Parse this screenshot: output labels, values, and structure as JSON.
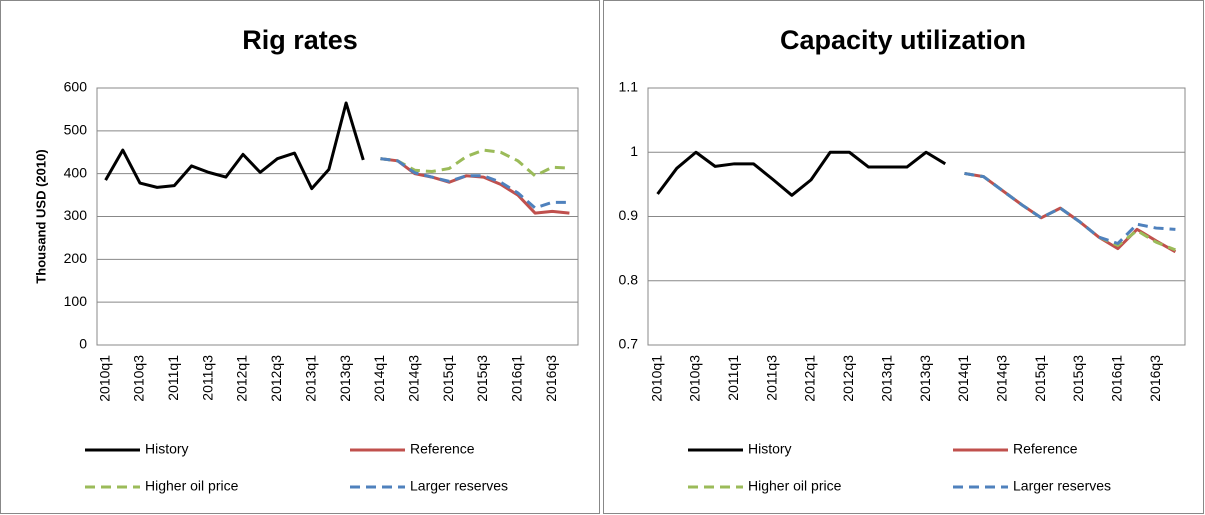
{
  "chart_data": [
    {
      "type": "line",
      "title": "Rig rates",
      "y_label": "Thousand  USD (2010)",
      "categories": [
        "2010q1",
        null,
        "2010q3",
        null,
        "2011q1",
        null,
        "2011q3",
        null,
        "2012q1",
        null,
        "2012q3",
        null,
        "2013q1",
        null,
        "2013q3",
        null,
        "2014q1",
        null,
        "2014q3",
        null,
        "2015q1",
        null,
        "2015q3",
        null,
        "2016q1",
        null,
        "2016q3",
        null
      ],
      "ylim": [
        0,
        600
      ],
      "yticks": [
        0,
        100,
        200,
        300,
        400,
        500,
        600
      ],
      "grid": true,
      "series": [
        {
          "name": "History",
          "color": "#000000",
          "dashed": false,
          "values": [
            385,
            455,
            378,
            368,
            372,
            418,
            403,
            392,
            445,
            403,
            435,
            448,
            365,
            410,
            565,
            432,
            null,
            null,
            null,
            null,
            null,
            null,
            null,
            null,
            null,
            null,
            null,
            null
          ]
        },
        {
          "name": "Reference",
          "color": "#c0504d",
          "dashed": false,
          "values": [
            null,
            null,
            null,
            null,
            null,
            null,
            null,
            null,
            null,
            null,
            null,
            null,
            null,
            null,
            null,
            null,
            435,
            430,
            400,
            392,
            380,
            395,
            392,
            375,
            350,
            308,
            312,
            308
          ]
        },
        {
          "name": "Higher oil price",
          "color": "#9bbb59",
          "dashed": true,
          "values": [
            null,
            null,
            null,
            null,
            null,
            null,
            null,
            null,
            null,
            null,
            null,
            null,
            null,
            null,
            null,
            null,
            435,
            430,
            408,
            405,
            412,
            440,
            455,
            450,
            430,
            395,
            415,
            413
          ]
        },
        {
          "name": "Larger reserves",
          "color": "#4f81bd",
          "dashed": true,
          "values": [
            null,
            null,
            null,
            null,
            null,
            null,
            null,
            null,
            null,
            null,
            null,
            null,
            null,
            null,
            null,
            null,
            435,
            430,
            402,
            392,
            382,
            395,
            395,
            380,
            355,
            320,
            333,
            333
          ]
        }
      ]
    },
    {
      "type": "line",
      "title": "Capacity utilization",
      "categories": [
        "2010q1",
        null,
        "2010q3",
        null,
        "2011q1",
        null,
        "2011q3",
        null,
        "2012q1",
        null,
        "2012q3",
        null,
        "2013q1",
        null,
        "2013q3",
        null,
        "2014q1",
        null,
        "2014q3",
        null,
        "2015q1",
        null,
        "2015q3",
        null,
        "2016q1",
        null,
        "2016q3",
        null
      ],
      "ylim": [
        0.7,
        1.1
      ],
      "yticks": [
        0.7,
        0.8,
        0.9,
        1,
        1.1
      ],
      "grid": true,
      "series": [
        {
          "name": "History",
          "color": "#000000",
          "dashed": false,
          "values": [
            0.935,
            0.975,
            1.0,
            0.978,
            0.982,
            0.982,
            0.958,
            0.933,
            0.957,
            1.0,
            1.0,
            0.977,
            0.977,
            0.977,
            1.0,
            0.982,
            null,
            null,
            null,
            null,
            null,
            null,
            null,
            null,
            null,
            null,
            null,
            null
          ]
        },
        {
          "name": "Reference",
          "color": "#c0504d",
          "dashed": false,
          "values": [
            null,
            null,
            null,
            null,
            null,
            null,
            null,
            null,
            null,
            null,
            null,
            null,
            null,
            null,
            null,
            null,
            0.967,
            0.962,
            0.94,
            0.918,
            0.898,
            0.913,
            0.892,
            0.868,
            0.85,
            0.88,
            0.862,
            0.845
          ]
        },
        {
          "name": "Higher oil price",
          "color": "#9bbb59",
          "dashed": true,
          "values": [
            null,
            null,
            null,
            null,
            null,
            null,
            null,
            null,
            null,
            null,
            null,
            null,
            null,
            null,
            null,
            null,
            0.967,
            0.962,
            0.94,
            0.918,
            0.898,
            0.913,
            0.892,
            0.868,
            0.855,
            0.878,
            0.86,
            0.848
          ]
        },
        {
          "name": "Larger reserves",
          "color": "#4f81bd",
          "dashed": true,
          "values": [
            null,
            null,
            null,
            null,
            null,
            null,
            null,
            null,
            null,
            null,
            null,
            null,
            null,
            null,
            null,
            null,
            0.967,
            0.962,
            0.94,
            0.918,
            0.898,
            0.913,
            0.892,
            0.868,
            0.858,
            0.888,
            0.882,
            0.88
          ]
        }
      ]
    }
  ]
}
